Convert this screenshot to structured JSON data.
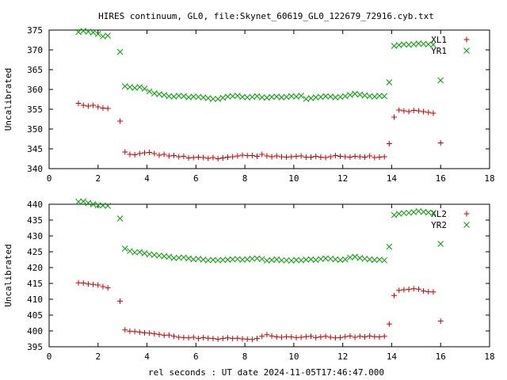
{
  "title": "HIRES continuum, GL0, file:Skynet_60619_GL0_122679_72916.cyb.txt",
  "xlabel": "rel seconds : UT date 2024-11-05T17:46:47.000",
  "chart_data": [
    {
      "type": "scatter",
      "ylabel": "Uncalibrated",
      "xlim": [
        0,
        18
      ],
      "ylim": [
        340,
        375
      ],
      "xticks": [
        0,
        2,
        4,
        6,
        8,
        10,
        12,
        14,
        16,
        18
      ],
      "yticks": [
        340,
        345,
        350,
        355,
        360,
        365,
        370,
        375
      ],
      "legend_position": "top-right",
      "grid": false,
      "series": [
        {
          "name": "XL1",
          "marker": "plus",
          "color": "#cc0000",
          "x": [
            1.2,
            1.4,
            1.6,
            1.8,
            2.0,
            2.2,
            2.4,
            2.9,
            3.1,
            3.3,
            3.5,
            3.7,
            3.9,
            4.1,
            4.3,
            4.5,
            4.7,
            4.9,
            5.1,
            5.3,
            5.5,
            5.7,
            5.9,
            6.1,
            6.3,
            6.5,
            6.7,
            6.9,
            7.1,
            7.3,
            7.5,
            7.7,
            7.9,
            8.1,
            8.3,
            8.5,
            8.7,
            8.9,
            9.1,
            9.3,
            9.5,
            9.7,
            9.9,
            10.1,
            10.3,
            10.5,
            10.7,
            10.9,
            11.1,
            11.3,
            11.5,
            11.7,
            11.9,
            12.1,
            12.3,
            12.5,
            12.7,
            12.9,
            13.1,
            13.3,
            13.5,
            13.7,
            13.9,
            14.1,
            14.3,
            14.5,
            14.7,
            14.9,
            15.1,
            15.3,
            15.5,
            15.7,
            16.0
          ],
          "y": [
            356.5,
            356.0,
            355.8,
            356.0,
            355.6,
            355.3,
            355.2,
            352.0,
            344.2,
            343.6,
            343.5,
            343.8,
            344.0,
            344.1,
            343.8,
            343.4,
            343.6,
            343.2,
            343.3,
            343.0,
            343.1,
            342.7,
            342.8,
            342.9,
            342.8,
            342.6,
            342.8,
            342.5,
            342.7,
            342.9,
            343.0,
            343.2,
            343.4,
            343.3,
            343.3,
            343.1,
            343.6,
            343.2,
            343.0,
            343.2,
            343.0,
            342.9,
            343.0,
            343.1,
            343.2,
            342.9,
            342.9,
            343.1,
            342.9,
            342.8,
            343.0,
            343.3,
            343.1,
            343.0,
            342.9,
            343.1,
            343.0,
            342.9,
            343.2,
            342.8,
            342.9,
            343.0,
            346.3,
            353.0,
            354.8,
            354.6,
            354.4,
            354.7,
            354.6,
            354.4,
            354.2,
            354.0,
            346.5
          ]
        },
        {
          "name": "YR1",
          "marker": "cross",
          "color": "#00a000",
          "x": [
            1.2,
            1.4,
            1.6,
            1.8,
            2.0,
            2.2,
            2.4,
            2.9,
            3.1,
            3.3,
            3.5,
            3.7,
            3.9,
            4.1,
            4.3,
            4.5,
            4.7,
            4.9,
            5.1,
            5.3,
            5.5,
            5.7,
            5.9,
            6.1,
            6.3,
            6.5,
            6.7,
            6.9,
            7.1,
            7.3,
            7.5,
            7.7,
            7.9,
            8.1,
            8.3,
            8.5,
            8.7,
            8.9,
            9.1,
            9.3,
            9.5,
            9.7,
            9.9,
            10.1,
            10.3,
            10.5,
            10.7,
            10.9,
            11.1,
            11.3,
            11.5,
            11.7,
            11.9,
            12.1,
            12.3,
            12.5,
            12.7,
            12.9,
            13.1,
            13.3,
            13.5,
            13.7,
            13.9,
            14.1,
            14.3,
            14.5,
            14.7,
            14.9,
            15.1,
            15.3,
            15.5,
            15.7,
            16.0
          ],
          "y": [
            374.5,
            374.8,
            374.6,
            374.4,
            374.0,
            373.4,
            373.6,
            369.5,
            360.8,
            360.6,
            360.4,
            360.6,
            360.2,
            359.5,
            359.0,
            358.8,
            358.6,
            358.3,
            358.2,
            358.4,
            358.3,
            358.0,
            358.2,
            358.1,
            358.0,
            357.8,
            357.6,
            357.6,
            357.9,
            358.2,
            358.3,
            358.4,
            358.1,
            358.0,
            358.1,
            358.3,
            358.0,
            357.9,
            358.1,
            358.2,
            358.0,
            358.1,
            358.3,
            358.2,
            358.4,
            357.6,
            357.8,
            358.0,
            358.1,
            358.3,
            358.2,
            358.0,
            358.1,
            358.3,
            358.6,
            358.9,
            358.7,
            358.5,
            358.3,
            358.2,
            358.4,
            358.3,
            361.8,
            371.0,
            371.2,
            371.4,
            371.3,
            371.4,
            371.6,
            371.5,
            371.4,
            371.3,
            362.3
          ]
        }
      ]
    },
    {
      "type": "scatter",
      "ylabel": "Uncalibrated",
      "xlim": [
        0,
        18
      ],
      "ylim": [
        395,
        440
      ],
      "xticks": [
        0,
        2,
        4,
        6,
        8,
        10,
        12,
        14,
        16,
        18
      ],
      "yticks": [
        395,
        400,
        405,
        410,
        415,
        420,
        425,
        430,
        435,
        440
      ],
      "legend_position": "top-right",
      "grid": false,
      "series": [
        {
          "name": "XL2",
          "marker": "plus",
          "color": "#cc0000",
          "x": [
            1.2,
            1.4,
            1.6,
            1.8,
            2.0,
            2.2,
            2.4,
            2.9,
            3.1,
            3.3,
            3.5,
            3.7,
            3.9,
            4.1,
            4.3,
            4.5,
            4.7,
            4.9,
            5.1,
            5.3,
            5.5,
            5.7,
            5.9,
            6.1,
            6.3,
            6.5,
            6.7,
            6.9,
            7.1,
            7.3,
            7.5,
            7.7,
            7.9,
            8.1,
            8.3,
            8.5,
            8.7,
            8.9,
            9.1,
            9.3,
            9.5,
            9.7,
            9.9,
            10.1,
            10.3,
            10.5,
            10.7,
            10.9,
            11.1,
            11.3,
            11.5,
            11.7,
            11.9,
            12.1,
            12.3,
            12.5,
            12.7,
            12.9,
            13.1,
            13.3,
            13.5,
            13.7,
            13.9,
            14.1,
            14.3,
            14.5,
            14.7,
            14.9,
            15.1,
            15.3,
            15.5,
            15.7,
            16.0
          ],
          "y": [
            415.2,
            415.1,
            414.8,
            414.7,
            414.5,
            414.0,
            413.6,
            409.4,
            400.3,
            399.9,
            399.8,
            399.6,
            399.4,
            399.3,
            399.1,
            398.9,
            398.6,
            398.7,
            398.3,
            398.0,
            397.9,
            397.8,
            398.0,
            397.6,
            397.9,
            397.7,
            397.6,
            397.4,
            397.6,
            397.8,
            397.6,
            397.7,
            397.5,
            397.4,
            397.3,
            397.6,
            398.3,
            398.8,
            398.4,
            398.1,
            398.0,
            398.2,
            398.1,
            397.9,
            398.0,
            398.2,
            398.3,
            397.9,
            398.1,
            398.3,
            398.0,
            397.8,
            397.9,
            398.2,
            398.4,
            398.0,
            398.3,
            398.1,
            398.4,
            398.2,
            398.1,
            398.3,
            402.2,
            411.2,
            412.8,
            413.0,
            413.1,
            413.3,
            413.2,
            412.6,
            412.4,
            412.3,
            403.1
          ]
        },
        {
          "name": "YR2",
          "marker": "cross",
          "color": "#00a000",
          "x": [
            1.2,
            1.4,
            1.6,
            1.8,
            2.0,
            2.2,
            2.4,
            2.9,
            3.1,
            3.3,
            3.5,
            3.7,
            3.9,
            4.1,
            4.3,
            4.5,
            4.7,
            4.9,
            5.1,
            5.3,
            5.5,
            5.7,
            5.9,
            6.1,
            6.3,
            6.5,
            6.7,
            6.9,
            7.1,
            7.3,
            7.5,
            7.7,
            7.9,
            8.1,
            8.3,
            8.5,
            8.7,
            8.9,
            9.1,
            9.3,
            9.5,
            9.7,
            9.9,
            10.1,
            10.3,
            10.5,
            10.7,
            10.9,
            11.1,
            11.3,
            11.5,
            11.7,
            11.9,
            12.1,
            12.3,
            12.5,
            12.7,
            12.9,
            13.1,
            13.3,
            13.5,
            13.7,
            13.9,
            14.1,
            14.3,
            14.5,
            14.7,
            14.9,
            15.1,
            15.3,
            15.5,
            15.7,
            16.0
          ],
          "y": [
            440.8,
            440.9,
            440.4,
            440.0,
            439.7,
            439.6,
            439.5,
            435.5,
            426.0,
            425.2,
            424.8,
            424.9,
            424.5,
            424.2,
            424.0,
            423.8,
            423.6,
            423.4,
            423.0,
            423.1,
            423.2,
            422.9,
            422.6,
            422.8,
            422.5,
            422.3,
            422.4,
            422.3,
            422.4,
            422.5,
            422.6,
            422.7,
            422.5,
            422.6,
            422.8,
            422.9,
            422.7,
            422.2,
            422.4,
            422.6,
            422.3,
            422.3,
            422.2,
            422.4,
            422.3,
            422.5,
            422.6,
            422.4,
            422.7,
            422.9,
            422.8,
            422.6,
            422.4,
            422.6,
            423.2,
            423.4,
            423.0,
            422.8,
            422.6,
            422.4,
            422.5,
            422.3,
            426.6,
            436.6,
            437.0,
            437.2,
            437.3,
            437.5,
            437.8,
            437.6,
            437.4,
            437.3,
            427.5
          ]
        }
      ]
    }
  ]
}
